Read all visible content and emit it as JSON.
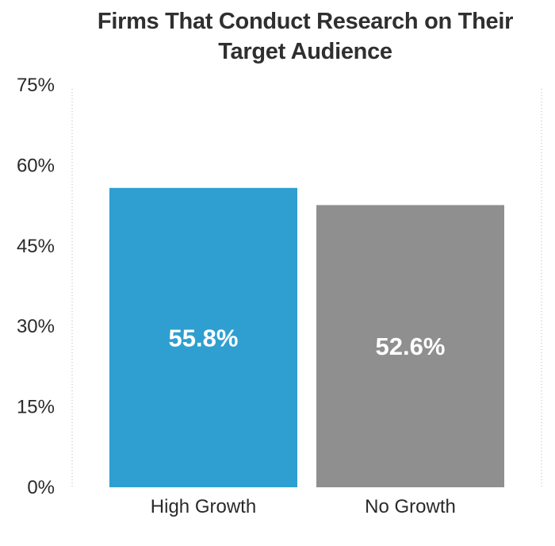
{
  "chart_data": {
    "type": "bar",
    "title": "Firms That Conduct Research on Their\nTarget Audience",
    "categories": [
      "High Growth",
      "No Growth"
    ],
    "values": [
      55.8,
      52.6
    ],
    "data_labels": [
      "55.8%",
      "52.6%"
    ],
    "colors": [
      "#2e9fd0",
      "#8f8f8f"
    ],
    "ylim": [
      0,
      75
    ],
    "yticks": [
      0,
      15,
      30,
      45,
      60,
      75
    ],
    "ytick_labels": [
      "0%",
      "15%",
      "30%",
      "45%",
      "60%",
      "75%"
    ],
    "xlabel": "",
    "ylabel": "",
    "grid": false,
    "legend": "none"
  }
}
